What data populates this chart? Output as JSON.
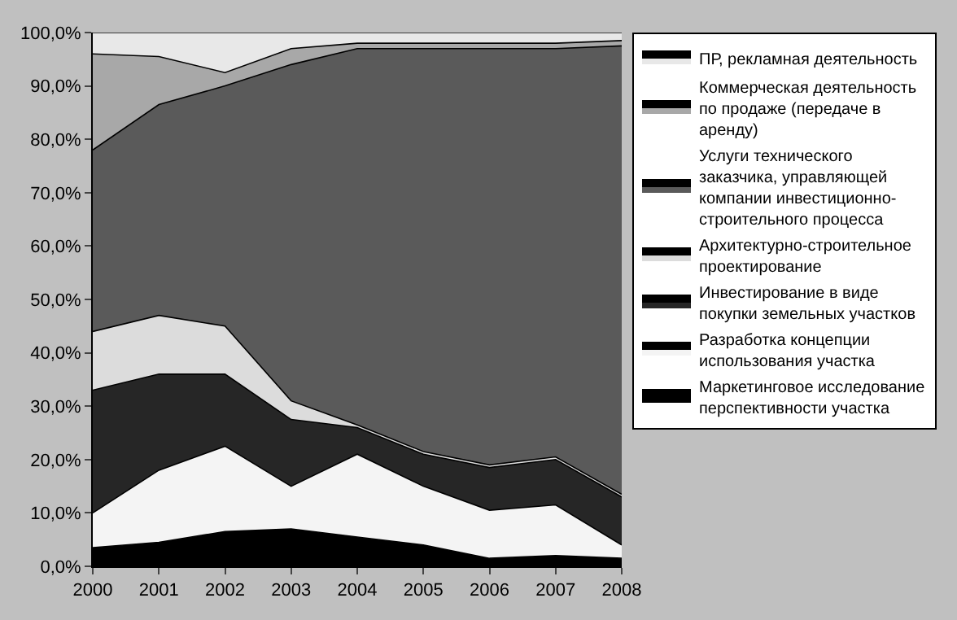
{
  "chart_data": {
    "type": "area",
    "stacked": true,
    "x": [
      2000,
      2001,
      2002,
      2003,
      2004,
      2005,
      2006,
      2007,
      2008
    ],
    "xlim": [
      2000,
      2008
    ],
    "xticks": [
      2000,
      2001,
      2002,
      2003,
      2004,
      2005,
      2006,
      2007,
      2008
    ],
    "ylim": [
      0,
      100
    ],
    "yticks": [
      {
        "value": 0,
        "label": "0,0%"
      },
      {
        "value": 10,
        "label": "10,0%"
      },
      {
        "value": 20,
        "label": "20,0%"
      },
      {
        "value": 30,
        "label": "30,0%"
      },
      {
        "value": 40,
        "label": "40,0%"
      },
      {
        "value": 50,
        "label": "50,0%"
      },
      {
        "value": 60,
        "label": "60,0%"
      },
      {
        "value": 70,
        "label": "70,0%"
      },
      {
        "value": 80,
        "label": "80,0%"
      },
      {
        "value": 90,
        "label": "90,0%"
      },
      {
        "value": 100,
        "label": "100,0%"
      }
    ],
    "legend": "right",
    "series": [
      {
        "name": "Маркетинговое исследование перспективности участка",
        "color": "#000000",
        "values": [
          3.5,
          4.5,
          6.5,
          7,
          5.5,
          4,
          1.5,
          2,
          1.5
        ]
      },
      {
        "name": "Разработка концепции использования участка",
        "color": "#f4f4f4",
        "values": [
          6.5,
          13.5,
          16,
          8,
          15.5,
          11,
          9,
          9.5,
          2.5
        ]
      },
      {
        "name": "Инвестирование в виде покупки земельных участков",
        "color": "#262626",
        "values": [
          23,
          18,
          13.5,
          12.5,
          5,
          6,
          8,
          8.5,
          9
        ]
      },
      {
        "name": "Архитектурно-строительное проектирование",
        "color": "#dcdcdc",
        "values": [
          11,
          11,
          9,
          3.5,
          0.5,
          0.5,
          0.5,
          0.5,
          0.5
        ]
      },
      {
        "name": "Услуги технического заказчика, управляющей компании инвестиционно-строительного процесса",
        "color": "#5a5a5a",
        "values": [
          34,
          39.5,
          45,
          63,
          70.5,
          75.5,
          78,
          76.5,
          84
        ]
      },
      {
        "name": "Коммерческая деятельность по продаже (передаче в аренду)",
        "color": "#a8a8a8",
        "values": [
          18,
          9,
          2.5,
          3,
          1,
          1,
          1,
          1,
          1
        ]
      },
      {
        "name": "ПР, рекламная деятельность",
        "color": "#e8e8e8",
        "values": [
          4,
          4.5,
          7.5,
          3,
          2,
          2,
          2,
          2,
          1.5
        ]
      }
    ]
  }
}
